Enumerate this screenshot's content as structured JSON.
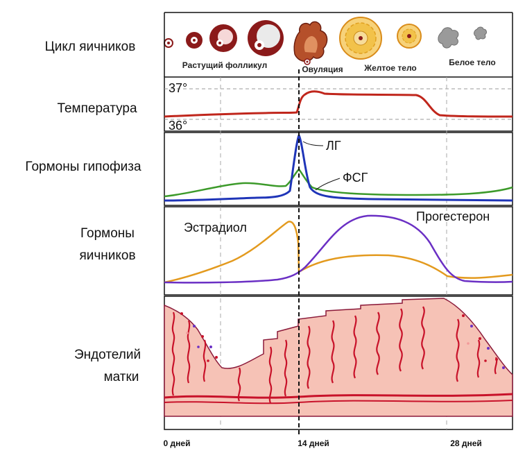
{
  "row_labels": {
    "ovarian_cycle": "Цикл яичников",
    "temperature": "Температура",
    "pituitary": "Гормоны гипофиза",
    "ovarian_line1": "Гормоны",
    "ovarian_line2": "яичников",
    "endometrium_line1": "Эндотелий",
    "endometrium_line2": "матки"
  },
  "stage_labels": {
    "growing": "Растущий фолликул",
    "ovulation": "Овуляция",
    "corpus_luteum": "Желтое тело",
    "corpus_albicans": "Белое тело"
  },
  "temperature_marks": {
    "high": "37°",
    "low": "36°"
  },
  "curve_labels": {
    "lh": "ЛГ",
    "fsh": "ФСГ",
    "estradiol": "Эстрадиол",
    "progesterone": "Прогестерон"
  },
  "day_labels": [
    "0 дней",
    "14 дней",
    "28 дней"
  ],
  "colors": {
    "frame": "#111111",
    "temperature": "#c0261c",
    "lh": "#1f35b8",
    "fsh": "#3c9a2a",
    "estradiol": "#e39a1e",
    "progesterone": "#6a2fc4",
    "tissue": "#f6c2b6",
    "gland": "#c8122a",
    "follicle": "#8b1a1a",
    "corpus_luteum": "#f2c24a"
  }
}
